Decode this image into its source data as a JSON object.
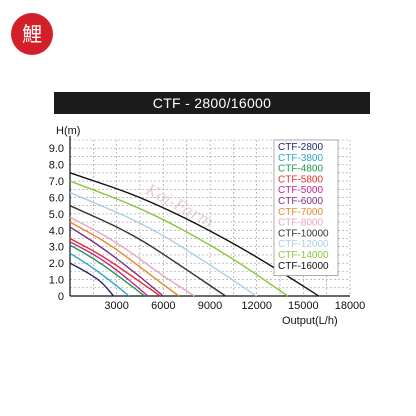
{
  "logo": {
    "glyph": "鯉",
    "color": "#d21f2a"
  },
  "chart_data": {
    "type": "line",
    "title": "CTF - 2800/16000",
    "xlabel": "Output(L/h)",
    "ylabel": "H(m)",
    "xlim": [
      0,
      18000
    ],
    "ylim": [
      0,
      9.5
    ],
    "xticks": [
      "3000",
      "6000",
      "9000",
      "12000",
      "15000",
      "18000"
    ],
    "yticks": [
      "0",
      "1.0",
      "2.0",
      "3.0",
      "4.0",
      "5.0",
      "6.0",
      "7.0",
      "8.0",
      "9.0"
    ],
    "grid": "dashed",
    "legend_position": "right",
    "watermark": "Koi-Farm",
    "series": [
      {
        "name": "CTF-2800",
        "color": "#1a2a6c",
        "values": [
          [
            0,
            2.0
          ],
          [
            1000,
            1.5
          ],
          [
            2000,
            0.9
          ],
          [
            2800,
            0
          ]
        ]
      },
      {
        "name": "CTF-3800",
        "color": "#2aa7c9",
        "values": [
          [
            0,
            2.6
          ],
          [
            1200,
            1.9
          ],
          [
            2500,
            1.0
          ],
          [
            3800,
            0
          ]
        ]
      },
      {
        "name": "CTF-4800",
        "color": "#1f9a4a",
        "values": [
          [
            0,
            3.1
          ],
          [
            1500,
            2.3
          ],
          [
            3000,
            1.3
          ],
          [
            4800,
            0
          ]
        ]
      },
      {
        "name": "CTF-5800",
        "color": "#e2312e",
        "values": [
          [
            0,
            3.5
          ],
          [
            2000,
            2.5
          ],
          [
            4000,
            1.2
          ],
          [
            5800,
            0
          ]
        ]
      },
      {
        "name": "CTF-5000",
        "color": "#c2268e",
        "values": [
          [
            0,
            3.3
          ],
          [
            1800,
            2.4
          ],
          [
            3400,
            1.3
          ],
          [
            5000,
            0
          ]
        ]
      },
      {
        "name": "CTF-6000",
        "color": "#7d2c83",
        "values": [
          [
            0,
            4.2
          ],
          [
            2000,
            3.0
          ],
          [
            4200,
            1.4
          ],
          [
            6000,
            0
          ]
        ]
      },
      {
        "name": "CTF-7000",
        "color": "#e58a2c",
        "values": [
          [
            0,
            4.5
          ],
          [
            2500,
            3.2
          ],
          [
            5000,
            1.4
          ],
          [
            7000,
            0
          ]
        ]
      },
      {
        "name": "CTF-8000",
        "color": "#e6a6c2",
        "values": [
          [
            0,
            4.8
          ],
          [
            3000,
            3.3
          ],
          [
            6000,
            1.2
          ],
          [
            8000,
            0
          ]
        ]
      },
      {
        "name": "CTF-10000",
        "color": "#333333",
        "values": [
          [
            0,
            5.5
          ],
          [
            4000,
            3.8
          ],
          [
            7500,
            1.6
          ],
          [
            10000,
            0
          ]
        ]
      },
      {
        "name": "CTF-12000",
        "color": "#a9cfe6",
        "values": [
          [
            0,
            6.3
          ],
          [
            5000,
            4.3
          ],
          [
            9000,
            1.9
          ],
          [
            12000,
            0
          ]
        ]
      },
      {
        "name": "CTF-14000",
        "color": "#8dc63f",
        "values": [
          [
            0,
            7.0
          ],
          [
            5000,
            5.2
          ],
          [
            10000,
            2.6
          ],
          [
            14000,
            0
          ]
        ]
      },
      {
        "name": "CTF-16000",
        "color": "#111111",
        "values": [
          [
            0,
            7.5
          ],
          [
            5000,
            5.9
          ],
          [
            11000,
            3.0
          ],
          [
            16000,
            0
          ]
        ]
      }
    ]
  }
}
